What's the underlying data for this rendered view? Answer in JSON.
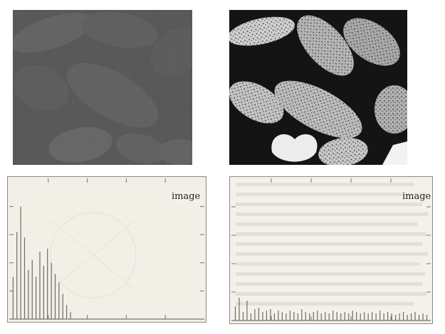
{
  "figure": {
    "top_left_photo": {
      "icon": "low-contrast-beans-photo"
    },
    "top_right_photo": {
      "icon": "high-contrast-beans-photo"
    },
    "bottom_left_panel": {
      "label": "image"
    },
    "bottom_right_panel": {
      "label": "image"
    }
  },
  "chart_data": [
    {
      "type": "bar",
      "title": "",
      "xlabel": "",
      "ylabel": "",
      "xlim": [
        0,
        255
      ],
      "ylim": [
        0,
        1
      ],
      "x": [
        5,
        10,
        15,
        20,
        25,
        30,
        35,
        40,
        45,
        50,
        55,
        60,
        65,
        70,
        75,
        80
      ],
      "values": [
        0.3,
        0.62,
        0.8,
        0.58,
        0.35,
        0.42,
        0.3,
        0.48,
        0.38,
        0.5,
        0.4,
        0.32,
        0.26,
        0.18,
        0.1,
        0.05
      ],
      "grid": false,
      "legend": "none"
    },
    {
      "type": "bar",
      "title": "",
      "xlabel": "",
      "ylabel": "",
      "xlim": [
        0,
        255
      ],
      "ylim": [
        0,
        1
      ],
      "x": [
        5,
        10,
        15,
        20,
        25,
        30,
        35,
        40,
        45,
        50,
        55,
        60,
        65,
        70,
        75,
        80,
        85,
        90,
        95,
        100,
        105,
        110,
        115,
        120,
        125,
        130,
        135,
        140,
        145,
        150,
        155,
        160,
        165,
        170,
        175,
        180,
        185,
        190,
        195,
        200,
        205,
        210,
        215,
        220,
        225,
        230,
        235,
        240,
        245,
        250
      ],
      "values": [
        0.1,
        0.16,
        0.06,
        0.14,
        0.05,
        0.08,
        0.09,
        0.06,
        0.07,
        0.08,
        0.05,
        0.07,
        0.06,
        0.05,
        0.07,
        0.06,
        0.05,
        0.08,
        0.06,
        0.05,
        0.06,
        0.07,
        0.05,
        0.06,
        0.05,
        0.07,
        0.06,
        0.05,
        0.06,
        0.05,
        0.07,
        0.06,
        0.05,
        0.06,
        0.05,
        0.06,
        0.05,
        0.07,
        0.05,
        0.06,
        0.05,
        0.04,
        0.05,
        0.06,
        0.04,
        0.05,
        0.06,
        0.04,
        0.05,
        0.04
      ],
      "grid": false,
      "legend": "none"
    }
  ]
}
